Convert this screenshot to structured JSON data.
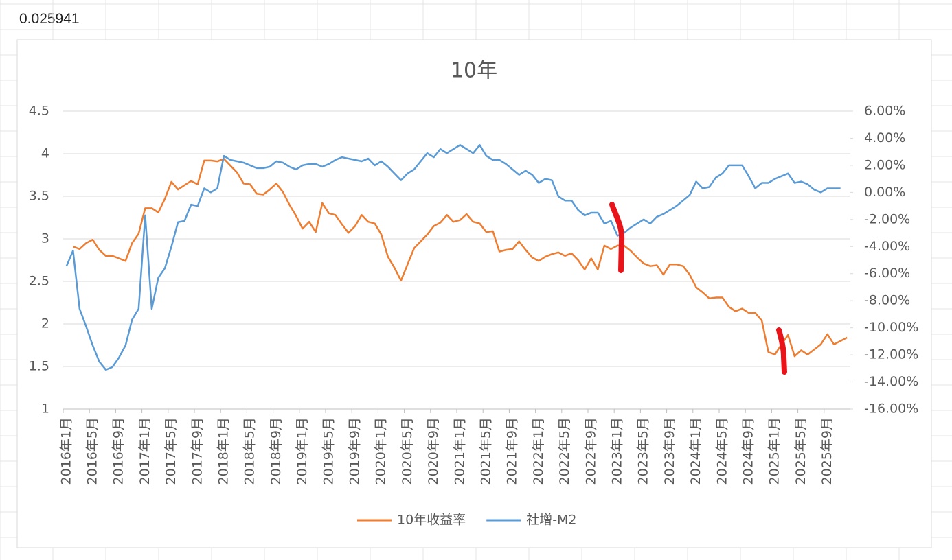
{
  "cell_text": "0.025941",
  "chart_data": {
    "type": "line",
    "title": "10年",
    "categories": [
      "2016年1月",
      null,
      null,
      null,
      "2016年5月",
      null,
      null,
      null,
      "2016年9月",
      null,
      null,
      null,
      "2017年1月",
      null,
      null,
      null,
      "2017年5月",
      null,
      null,
      null,
      "2017年9月",
      null,
      null,
      null,
      "2018年1月",
      null,
      null,
      null,
      "2018年5月",
      null,
      null,
      null,
      "2018年9月",
      null,
      null,
      null,
      "2019年1月",
      null,
      null,
      null,
      "2019年5月",
      null,
      null,
      null,
      "2019年9月",
      null,
      null,
      null,
      "2020年1月",
      null,
      null,
      null,
      "2020年5月",
      null,
      null,
      null,
      "2020年9月",
      null,
      null,
      null,
      "2021年1月",
      null,
      null,
      null,
      "2021年5月",
      null,
      null,
      null,
      "2021年9月",
      null,
      null,
      null,
      "2022年1月",
      null,
      null,
      null,
      "2022年5月",
      null,
      null,
      null,
      "2022年9月",
      null,
      null,
      null,
      "2023年1月",
      null,
      null,
      null,
      "2023年5月",
      null,
      null,
      null,
      "2023年9月",
      null,
      null,
      null,
      "2024年1月",
      null,
      null,
      null,
      "2024年5月",
      null,
      null,
      null,
      "2024年9月",
      null,
      null,
      null,
      "2025年1月",
      null,
      null,
      null,
      "2025年5月",
      null,
      null,
      null,
      "2025年9月",
      null,
      null,
      null
    ],
    "series": [
      {
        "name": "10年收益率",
        "color": "#ed7d31",
        "values": [
          null,
          2.91,
          2.88,
          2.95,
          2.99,
          2.87,
          2.8,
          2.8,
          2.77,
          2.74,
          2.95,
          3.06,
          3.36,
          3.36,
          3.31,
          3.47,
          3.67,
          3.58,
          3.63,
          3.68,
          3.64,
          3.92,
          3.92,
          3.91,
          3.94,
          3.86,
          3.78,
          3.65,
          3.64,
          3.53,
          3.52,
          3.58,
          3.65,
          3.55,
          3.4,
          3.27,
          3.12,
          3.2,
          3.08,
          3.42,
          3.3,
          3.28,
          3.17,
          3.07,
          3.15,
          3.28,
          3.2,
          3.18,
          3.05,
          2.79,
          2.66,
          2.51,
          2.7,
          2.89,
          2.97,
          3.05,
          3.15,
          3.19,
          3.28,
          3.2,
          3.22,
          3.29,
          3.2,
          3.18,
          3.08,
          3.09,
          2.85,
          2.87,
          2.88,
          2.97,
          2.87,
          2.78,
          2.74,
          2.79,
          2.82,
          2.84,
          2.8,
          2.83,
          2.75,
          2.64,
          2.77,
          2.64,
          2.92,
          2.88,
          2.92,
          2.92,
          2.86,
          2.78,
          2.71,
          2.68,
          2.69,
          2.58,
          2.7,
          2.7,
          2.68,
          2.58,
          2.43,
          2.37,
          2.3,
          2.31,
          2.31,
          2.2,
          2.15,
          2.18,
          2.13,
          2.13,
          2.04,
          1.67,
          1.64,
          1.76,
          1.87,
          1.62,
          1.69,
          1.64,
          1.7,
          1.76,
          1.88,
          1.76,
          1.8,
          1.84
        ]
      },
      {
        "name": "社增-M2",
        "color": "#5b9bd5",
        "axis": "y2",
        "values": [
          -5.45,
          -4.3,
          -8.6,
          -9.9,
          -11.3,
          -12.5,
          -13.1,
          -12.9,
          -12.2,
          -11.3,
          -9.4,
          -8.6,
          -1.7,
          -8.6,
          -6.3,
          -5.6,
          -4.0,
          -2.2,
          -2.1,
          -0.9,
          -1.0,
          0.3,
          0.0,
          0.3,
          2.7,
          2.4,
          2.3,
          2.2,
          2.0,
          1.8,
          1.8,
          1.9,
          2.3,
          2.2,
          1.9,
          1.7,
          2.0,
          2.1,
          2.1,
          1.9,
          2.1,
          2.4,
          2.6,
          2.5,
          2.4,
          2.3,
          2.5,
          2.0,
          2.3,
          1.9,
          1.4,
          0.9,
          1.4,
          1.7,
          2.3,
          2.9,
          2.6,
          3.2,
          2.9,
          3.2,
          3.5,
          3.2,
          2.9,
          3.5,
          2.7,
          2.4,
          2.4,
          2.1,
          1.7,
          1.3,
          1.6,
          1.3,
          0.7,
          1.0,
          0.9,
          -0.3,
          -0.6,
          -0.6,
          -1.3,
          -1.7,
          -1.5,
          -1.5,
          -2.3,
          -2.1,
          -3.2,
          -3.0,
          -2.6,
          -2.3,
          -2.0,
          -2.3,
          -1.8,
          -1.6,
          -1.3,
          -1.0,
          -0.6,
          -0.2,
          0.8,
          0.3,
          0.4,
          1.1,
          1.4,
          2.0,
          2.0,
          2.0,
          1.2,
          0.3,
          0.7,
          0.7,
          1.0,
          1.2,
          1.4,
          0.7,
          0.8,
          0.6,
          0.2,
          0.0,
          0.3,
          0.3,
          0.3,
          null
        ]
      }
    ],
    "ylim": [
      1,
      4.5
    ],
    "yticks": [
      1,
      1.5,
      2,
      2.5,
      3,
      3.5,
      4,
      4.5
    ],
    "y2lim": [
      -16,
      6
    ],
    "y2ticks": [
      {
        "value": -16,
        "label": "-16.00%"
      },
      {
        "value": -14,
        "label": "-14.00%"
      },
      {
        "value": -12,
        "label": "-12.00%"
      },
      {
        "value": -10,
        "label": "-10.00%"
      },
      {
        "value": -8,
        "label": "-8.00%"
      },
      {
        "value": -6,
        "label": "-6.00%"
      },
      {
        "value": -4,
        "label": "-4.00%"
      },
      {
        "value": -2,
        "label": "-2.00%"
      },
      {
        "value": 0,
        "label": "0.00%"
      },
      {
        "value": 2,
        "label": "2.00%"
      },
      {
        "value": 4,
        "label": "4.00%"
      },
      {
        "value": 6,
        "label": "6.00%"
      }
    ],
    "grid": true,
    "legend": "bottom"
  }
}
